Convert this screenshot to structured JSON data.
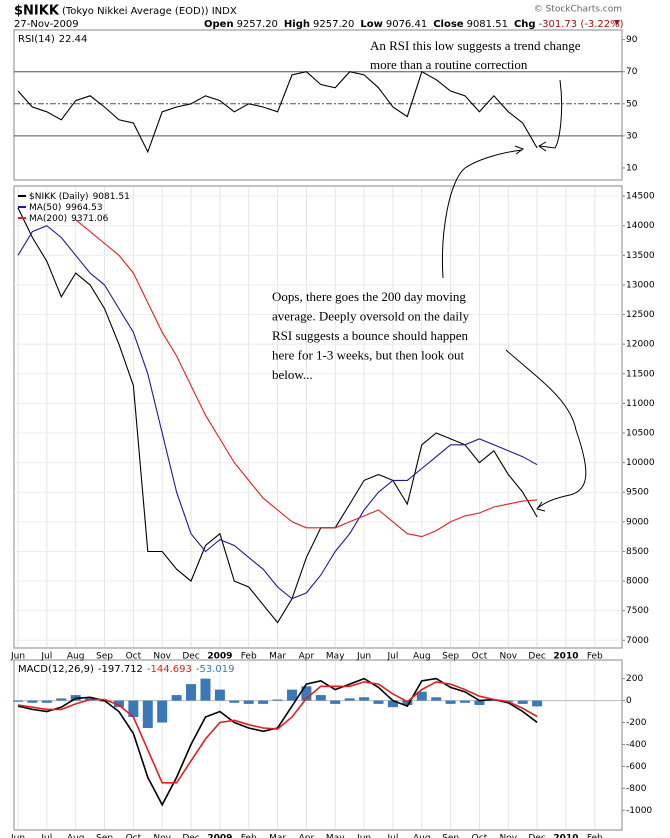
{
  "header": {
    "symbol": "$NIKK",
    "description": "(Tokyo Nikkei Average (EOD)) INDX",
    "date": "27-Nov-2009",
    "source": "© StockCharts.com",
    "quote": [
      {
        "label": "Open",
        "value": "9257.20"
      },
      {
        "label": "High",
        "value": "9257.20"
      },
      {
        "label": "Low",
        "value": "9076.41"
      },
      {
        "label": "Close",
        "value": "9081.51"
      },
      {
        "label": "Chg",
        "value": "-301.73 (-3.22%)"
      }
    ]
  },
  "chart_data": [
    {
      "type": "line",
      "indicator": "RSI(14)",
      "ylim": [
        2.5,
        96
      ],
      "yticks": [
        10,
        30,
        50,
        70,
        90
      ],
      "hlines": [
        30,
        50,
        70
      ],
      "annotation": [
        "An RSI this low  suggests a trend  change",
        "more than a routine correction"
      ],
      "series": [
        {
          "color": "#000000",
          "values": [
            58,
            48,
            45,
            40,
            52,
            55,
            48,
            40,
            38,
            20,
            45,
            48,
            50,
            55,
            52,
            45,
            50,
            48,
            45,
            68,
            70,
            62,
            60,
            70,
            68,
            60,
            48,
            42,
            70,
            65,
            58,
            55,
            45,
            55,
            45,
            38,
            22.44,
            null,
            null,
            null,
            null,
            null
          ]
        }
      ]
    },
    {
      "type": "line",
      "ylim": [
        6870,
        14670
      ],
      "yticks": [
        7000,
        7500,
        8000,
        8500,
        9000,
        9500,
        10000,
        10500,
        11000,
        11500,
        12000,
        12500,
        13000,
        13500,
        14000,
        14500
      ],
      "grid": true,
      "categories": [
        "Jun",
        null,
        "Jul",
        null,
        "Aug",
        null,
        "Sep",
        null,
        "Oct",
        null,
        "Nov",
        null,
        "Dec",
        null,
        "2009",
        null,
        "Feb",
        null,
        "Mar",
        null,
        "Apr",
        null,
        "May",
        null,
        "Jun",
        null,
        "Jul",
        null,
        "Aug",
        null,
        "Sep",
        null,
        "Oct",
        null,
        "Nov",
        null,
        "Dec",
        null,
        "2010",
        null,
        "Feb",
        null
      ],
      "annotation": [
        "Oops, there goes the 200 day moving",
        "average. Deeply oversold on the daily",
        "RSI suggests a bounce should happen",
        "here for 1-3 weeks, but then look out",
        "below..."
      ],
      "series": [
        {
          "name": "$NIKK (Daily)",
          "color": "#000000",
          "values": [
            14300,
            13800,
            13400,
            12800,
            13200,
            13000,
            12600,
            12000,
            11300,
            8500,
            8500,
            8200,
            8000,
            8600,
            8800,
            8000,
            7900,
            7600,
            7300,
            7700,
            8400,
            8900,
            8900,
            9300,
            9700,
            9800,
            9700,
            9300,
            10300,
            10500,
            10400,
            10300,
            10000,
            10200,
            9800,
            9500,
            9081.51,
            null,
            null,
            null,
            null,
            null
          ]
        },
        {
          "name": "MA(50)",
          "color": "#1c1c8c",
          "values": [
            13500,
            13900,
            14000,
            13800,
            13500,
            13200,
            13000,
            12600,
            12200,
            11500,
            10500,
            9500,
            8800,
            8500,
            8700,
            8600,
            8400,
            8200,
            7900,
            7700,
            7800,
            8100,
            8500,
            8800,
            9200,
            9500,
            9700,
            9700,
            9900,
            10100,
            10300,
            10300,
            10400,
            10300,
            10200,
            10100,
            9964.53,
            null,
            null,
            null,
            null,
            null
          ]
        },
        {
          "name": "MA(200)",
          "color": "#e02020",
          "values": [
            null,
            null,
            null,
            null,
            14100,
            13900,
            13700,
            13500,
            13200,
            12700,
            12200,
            11800,
            11300,
            10800,
            10400,
            10000,
            9700,
            9400,
            9200,
            9000,
            8900,
            8900,
            8900,
            9000,
            9100,
            9200,
            9000,
            8800,
            8750,
            8850,
            9000,
            9100,
            9150,
            9250,
            9300,
            9350,
            9371.06,
            null,
            null,
            null,
            null,
            null
          ]
        }
      ]
    },
    {
      "type": "line",
      "indicator": "MACD(12,26,9)",
      "ylim": [
        -1180,
        370
      ],
      "yticks": [
        200,
        0,
        -200,
        -400,
        -600,
        -800,
        -1000
      ],
      "categories": [
        "Jun",
        null,
        "Jul",
        null,
        "Aug",
        null,
        "Sep",
        null,
        "Oct",
        null,
        "Nov",
        null,
        "Dec",
        null,
        "2009",
        null,
        "Feb",
        null,
        "Mar",
        null,
        "Apr",
        null,
        "May",
        null,
        "Jun",
        null,
        "Jul",
        null,
        "Aug",
        null,
        "Sep",
        null,
        "Oct",
        null,
        "Nov",
        null,
        "Dec",
        null,
        "2010",
        null,
        "Feb",
        null
      ],
      "series": [
        {
          "color": "#000000",
          "values": [
            -50,
            -80,
            -100,
            -60,
            20,
            30,
            0,
            -100,
            -300,
            -700,
            -950,
            -700,
            -400,
            -150,
            -100,
            -200,
            -250,
            -280,
            -250,
            -50,
            150,
            180,
            100,
            150,
            200,
            120,
            0,
            -50,
            180,
            200,
            120,
            80,
            0,
            10,
            -20,
            -100,
            -197.712,
            null,
            null,
            null,
            null,
            null
          ]
        },
        {
          "color": "#e02020",
          "values": [
            -40,
            -60,
            -80,
            -80,
            -30,
            10,
            10,
            -40,
            -150,
            -450,
            -750,
            -750,
            -550,
            -350,
            -200,
            -180,
            -220,
            -250,
            -260,
            -150,
            20,
            130,
            130,
            130,
            170,
            150,
            60,
            -10,
            100,
            170,
            150,
            100,
            40,
            10,
            -10,
            -70,
            -144.693,
            null,
            null,
            null,
            null,
            null
          ]
        },
        {
          "type": "bar",
          "color": "#3a78b8",
          "values": [
            -10,
            -20,
            -20,
            20,
            50,
            20,
            -10,
            -60,
            -150,
            -250,
            -200,
            50,
            150,
            200,
            100,
            -20,
            -30,
            -30,
            10,
            100,
            130,
            50,
            -30,
            20,
            30,
            -30,
            -60,
            -40,
            80,
            30,
            -30,
            -20,
            -40,
            0,
            -10,
            -30,
            -53.019,
            null,
            null,
            null,
            null,
            null
          ]
        }
      ]
    }
  ]
}
